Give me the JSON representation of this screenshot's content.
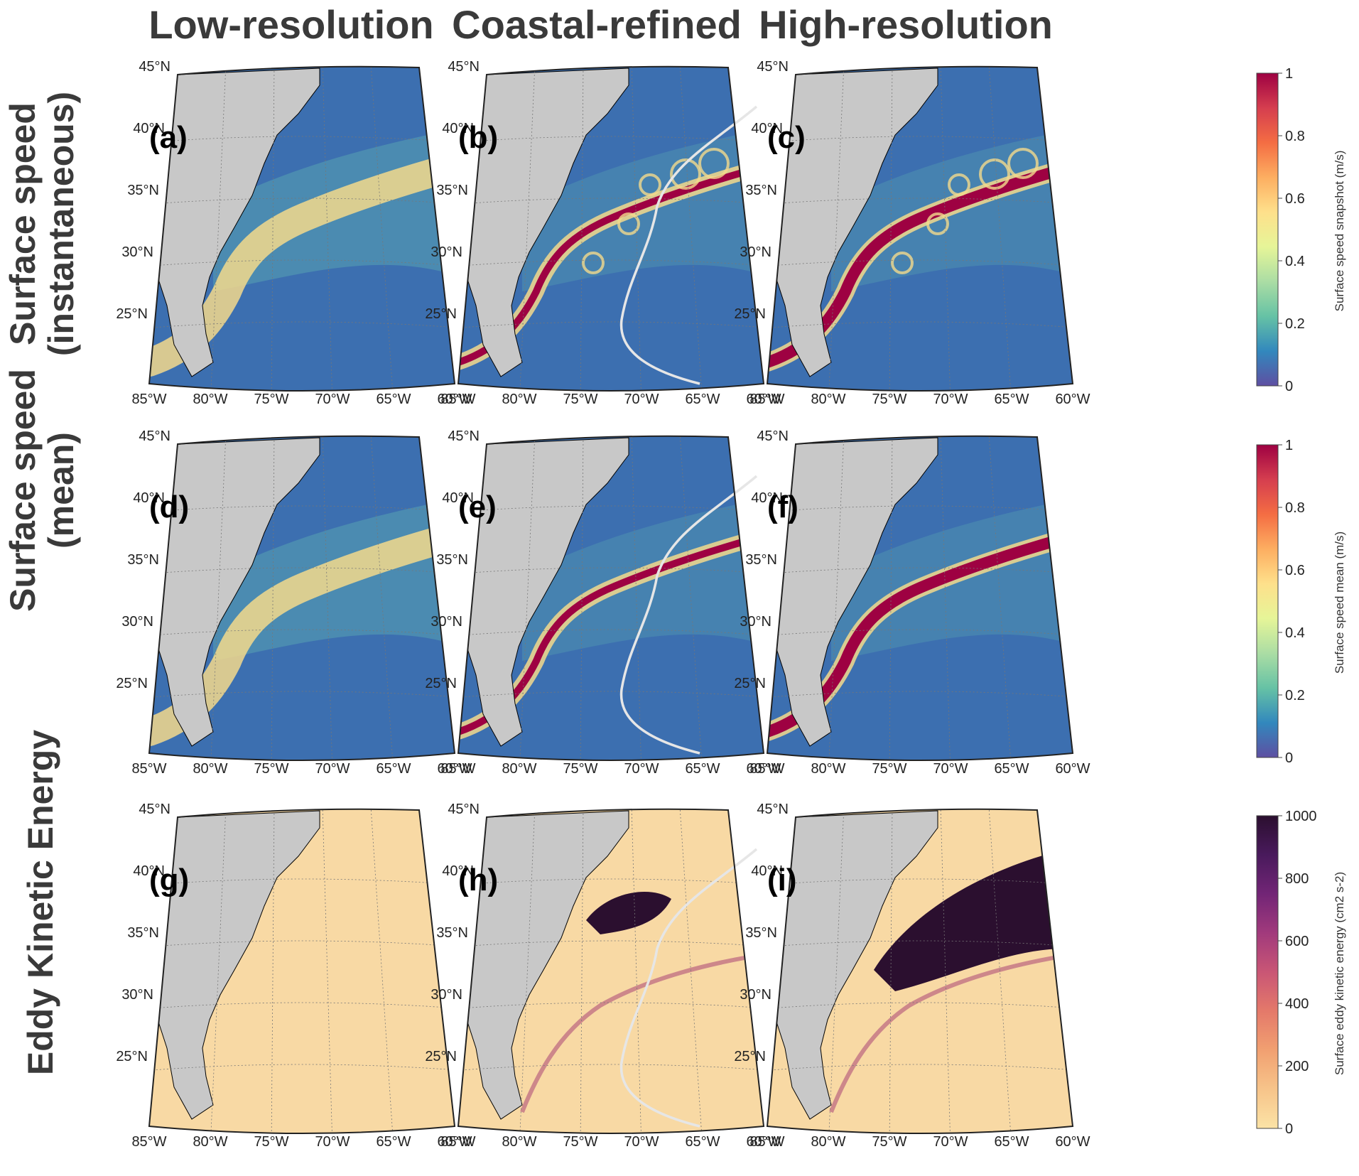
{
  "columns": [
    "Low-resolution",
    "Coastal-refined",
    "High-resolution"
  ],
  "rows": [
    {
      "title_line1": "Surface speed",
      "title_line2": "(instantaneous)"
    },
    {
      "title_line1": "Surface speed",
      "title_line2": "(mean)"
    },
    {
      "title_line1": "Eddy Kinetic Energy",
      "title_line2": ""
    }
  ],
  "panels": [
    {
      "label": "(a)",
      "variable": "speed",
      "resolution": "low",
      "region_line": false
    },
    {
      "label": "(b)",
      "variable": "speed",
      "resolution": "coastal",
      "region_line": true
    },
    {
      "label": "(c)",
      "variable": "speed",
      "resolution": "high",
      "region_line": false
    },
    {
      "label": "(d)",
      "variable": "speed_mean",
      "resolution": "low",
      "region_line": false
    },
    {
      "label": "(e)",
      "variable": "speed_mean",
      "resolution": "coastal",
      "region_line": true
    },
    {
      "label": "(f)",
      "variable": "speed_mean",
      "resolution": "high",
      "region_line": false
    },
    {
      "label": "(g)",
      "variable": "eke",
      "resolution": "low",
      "region_line": false
    },
    {
      "label": "(h)",
      "variable": "eke",
      "resolution": "coastal",
      "region_line": true
    },
    {
      "label": "(i)",
      "variable": "eke",
      "resolution": "high",
      "region_line": false
    }
  ],
  "lat_labels": [
    "45°N",
    "40°N",
    "35°N",
    "30°N",
    "25°N"
  ],
  "lon_labels": [
    "85°W",
    "80°W",
    "75°W",
    "70°W",
    "65°W",
    "60°W"
  ],
  "colorbars": [
    {
      "label": "Surface speed snapshot (m/s)",
      "ticks": [
        "1",
        "0.8",
        "0.6",
        "0.4",
        "0.2",
        "0"
      ],
      "palette": "spectral"
    },
    {
      "label": "Surface speed mean (m/s)",
      "ticks": [
        "1",
        "0.8",
        "0.6",
        "0.4",
        "0.2",
        "0"
      ],
      "palette": "spectral"
    },
    {
      "label": "Surface eddy kinetic energy (cm2 s-2)",
      "ticks": [
        "1000",
        "800",
        "600",
        "400",
        "200",
        "0"
      ],
      "palette": "magma"
    }
  ],
  "colors": {
    "land": "#c8c8c8",
    "ocean_low": "#3c6fb0",
    "ocean_mid": "#5aa7b2",
    "jet_warm": "#f3d98c",
    "jet_core": "#9e0142",
    "eke_bg": "#f8d9a4",
    "eke_dark": "#2b0f2f",
    "region_line": "#e6e6e6"
  }
}
